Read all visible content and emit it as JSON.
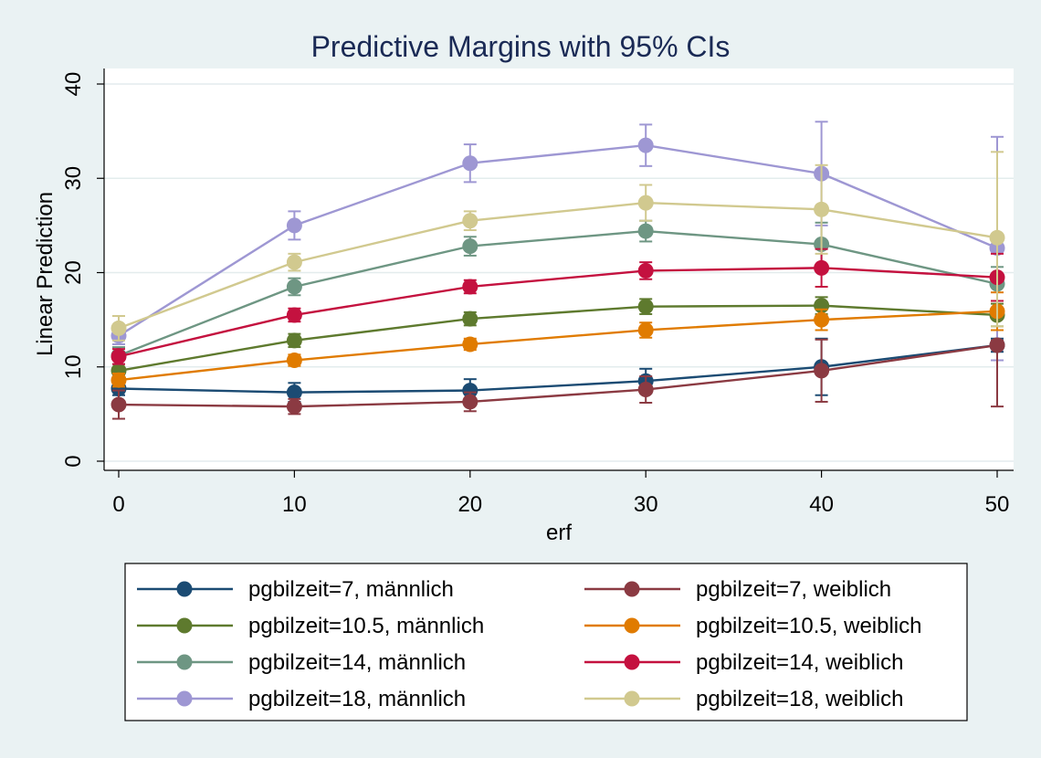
{
  "chart_data": {
    "type": "line",
    "title": "Predictive Margins with 95% CIs",
    "xlabel": "erf",
    "ylabel": "Linear Prediction",
    "x": [
      0,
      10,
      20,
      30,
      40,
      50
    ],
    "xlim": [
      0,
      50
    ],
    "ylim": [
      0,
      40
    ],
    "xticks": [
      "0",
      "10",
      "20",
      "30",
      "40",
      "50"
    ],
    "yticks": [
      "0",
      "10",
      "20",
      "30",
      "40"
    ],
    "grid": true,
    "legend_position": "bottom",
    "series": [
      {
        "name": "pgbilzeit=7, männlich",
        "color": "#1b4b73",
        "values": [
          7.7,
          7.3,
          7.5,
          8.5,
          10.0,
          12.3
        ],
        "lower": [
          7.0,
          6.3,
          6.3,
          7.2,
          7.0,
          11.6
        ],
        "upper": [
          8.4,
          8.3,
          8.7,
          9.8,
          13.0,
          13.0
        ]
      },
      {
        "name": "pgbilzeit=10.5, männlich",
        "color": "#5e7a2e",
        "values": [
          9.6,
          12.8,
          15.1,
          16.4,
          16.5,
          15.5
        ],
        "lower": [
          8.9,
          12.1,
          14.4,
          15.6,
          15.6,
          14.3
        ],
        "upper": [
          10.3,
          13.5,
          15.8,
          17.2,
          17.4,
          16.7
        ]
      },
      {
        "name": "pgbilzeit=14, männlich",
        "color": "#6e9683",
        "values": [
          11.2,
          18.5,
          22.8,
          24.4,
          23.0,
          18.8
        ],
        "lower": [
          10.3,
          17.6,
          21.8,
          23.3,
          20.7,
          17.0
        ],
        "upper": [
          12.1,
          19.4,
          23.8,
          25.5,
          25.3,
          20.6
        ]
      },
      {
        "name": "pgbilzeit=18, männlich",
        "color": "#9e97d3",
        "values": [
          13.3,
          25.0,
          31.6,
          33.5,
          30.5,
          22.6
        ],
        "lower": [
          12.4,
          23.5,
          29.6,
          31.3,
          25.0,
          10.7
        ],
        "upper": [
          14.2,
          26.5,
          33.6,
          35.7,
          36.0,
          34.4
        ]
      },
      {
        "name": "pgbilzeit=7, weiblich",
        "color": "#8b3a42",
        "values": [
          6.0,
          5.8,
          6.3,
          7.6,
          9.6,
          12.3
        ],
        "lower": [
          4.5,
          5.0,
          5.3,
          6.2,
          6.3,
          5.8
        ],
        "upper": [
          7.5,
          6.6,
          7.3,
          9.0,
          12.9,
          12.8
        ]
      },
      {
        "name": "pgbilzeit=10.5, weiblich",
        "color": "#e07b00",
        "values": [
          8.6,
          10.7,
          12.4,
          13.9,
          15.0,
          15.9
        ],
        "lower": [
          7.9,
          10.1,
          11.8,
          13.1,
          13.9,
          13.9
        ],
        "upper": [
          9.3,
          11.3,
          13.0,
          14.7,
          16.1,
          17.9
        ]
      },
      {
        "name": "pgbilzeit=14, weiblich",
        "color": "#c4113f",
        "values": [
          11.1,
          15.5,
          18.5,
          20.2,
          20.5,
          19.5
        ],
        "lower": [
          10.3,
          14.8,
          17.8,
          19.3,
          18.5,
          17.0
        ],
        "upper": [
          11.9,
          16.2,
          19.2,
          21.1,
          22.5,
          22.0
        ]
      },
      {
        "name": "pgbilzeit=18, weiblich",
        "color": "#d1c98f",
        "values": [
          14.1,
          21.1,
          25.5,
          27.4,
          26.7,
          23.7
        ],
        "lower": [
          12.8,
          20.2,
          24.5,
          25.5,
          22.0,
          14.3
        ],
        "upper": [
          15.4,
          22.0,
          26.5,
          29.3,
          31.4,
          32.8
        ]
      }
    ]
  }
}
